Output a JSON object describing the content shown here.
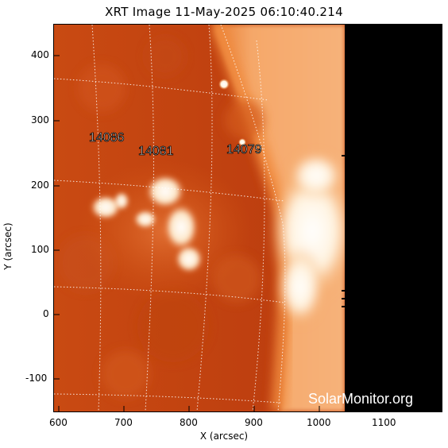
{
  "title": "XRT Image 11-May-2025 06:10:40.214",
  "x_axis": {
    "label": "X (arcsec)",
    "ticks": [
      "600",
      "700",
      "800",
      "900",
      "1000",
      "1100"
    ]
  },
  "y_axis": {
    "label": "Y (arcsec)",
    "ticks": [
      "400",
      "300",
      "200",
      "100",
      "0",
      "-100"
    ]
  },
  "regions": [
    {
      "label": "14086"
    },
    {
      "label": "14081"
    },
    {
      "label": "14079"
    }
  ],
  "watermark": "SolarMonitor.org",
  "colors": {
    "disk_dark": "#b8360e",
    "disk_mid": "#d65a14",
    "bright": "#fff6e8",
    "offlimb": "#f7a458",
    "no_data": "#000000"
  }
}
